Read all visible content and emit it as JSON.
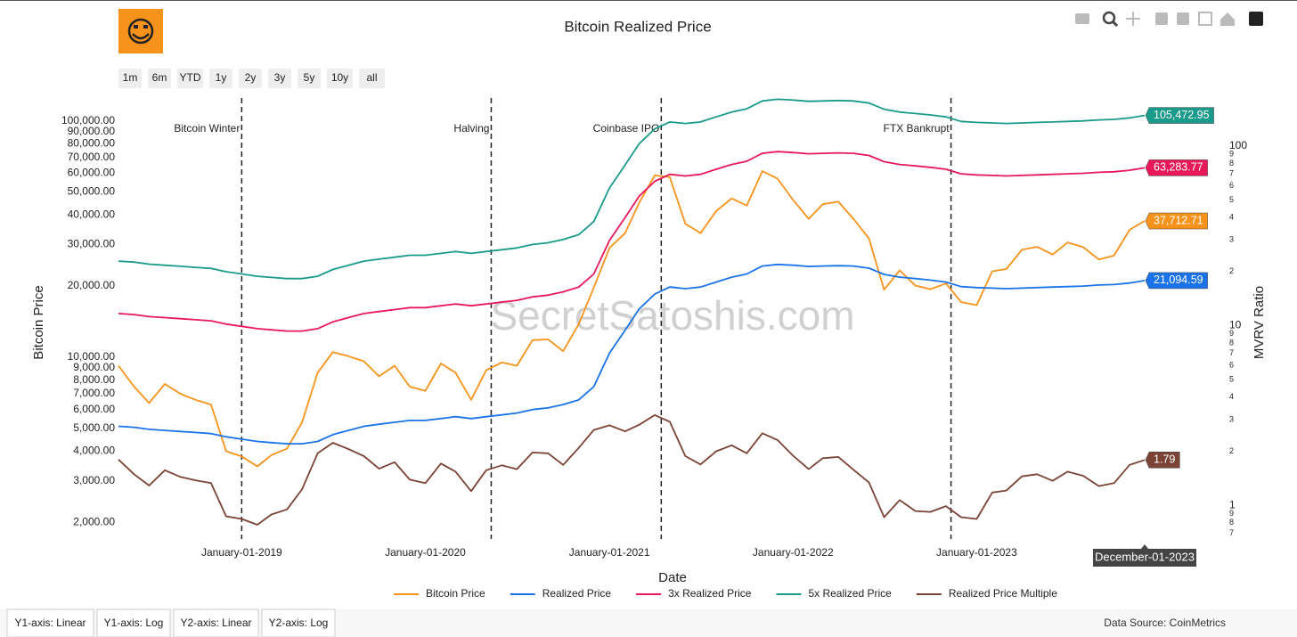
{
  "chart_data": {
    "type": "line",
    "title": "Bitcoin Realized Price",
    "x_label": "Date",
    "y_label": "Bitcoin Price",
    "y2_label": "MVRV Ratio",
    "watermark": "SecretSatoshis.com",
    "hover_label": "December-01-2023",
    "log_y": true,
    "log_y2": true,
    "legend": "bottom",
    "x": [
      "2018-05-01",
      "2018-06-01",
      "2018-07-01",
      "2018-08-01",
      "2018-09-01",
      "2018-10-01",
      "2018-11-01",
      "2018-12-01",
      "2019-01-01",
      "2019-02-01",
      "2019-03-01",
      "2019-04-01",
      "2019-05-01",
      "2019-06-01",
      "2019-07-01",
      "2019-08-01",
      "2019-09-01",
      "2019-10-01",
      "2019-11-01",
      "2019-12-01",
      "2020-01-01",
      "2020-02-01",
      "2020-03-01",
      "2020-04-01",
      "2020-05-01",
      "2020-06-01",
      "2020-07-01",
      "2020-08-01",
      "2020-09-01",
      "2020-10-01",
      "2020-11-01",
      "2020-12-01",
      "2021-01-01",
      "2021-02-01",
      "2021-03-01",
      "2021-04-01",
      "2021-05-01",
      "2021-06-01",
      "2021-07-01",
      "2021-08-01",
      "2021-09-01",
      "2021-10-01",
      "2021-11-01",
      "2021-12-01",
      "2022-01-01",
      "2022-02-01",
      "2022-03-01",
      "2022-04-01",
      "2022-05-01",
      "2022-06-01",
      "2022-07-01",
      "2022-08-01",
      "2022-09-01",
      "2022-10-01",
      "2022-11-01",
      "2022-12-01",
      "2023-01-01",
      "2023-02-01",
      "2023-03-01",
      "2023-04-01",
      "2023-05-01",
      "2023-06-01",
      "2023-07-01",
      "2023-08-01",
      "2023-09-01",
      "2023-10-01",
      "2023-11-01",
      "2023-12-01"
    ],
    "xlim": [
      "2018-05-01",
      "2023-12-01"
    ],
    "xticks": [
      {
        "value": "2019-01-01",
        "label": "January-01-2019"
      },
      {
        "value": "2020-01-01",
        "label": "January-01-2020"
      },
      {
        "value": "2021-01-01",
        "label": "January-01-2021"
      },
      {
        "value": "2022-01-01",
        "label": "January-01-2022"
      },
      {
        "value": "2023-01-01",
        "label": "January-01-2023"
      }
    ],
    "ylim": [
      1700,
      125000
    ],
    "yticks": [
      {
        "value": 2000,
        "label": "2,000.00"
      },
      {
        "value": 3000,
        "label": "3,000.00"
      },
      {
        "value": 4000,
        "label": "4,000.00"
      },
      {
        "value": 5000,
        "label": "5,000.00"
      },
      {
        "value": 6000,
        "label": "6,000.00"
      },
      {
        "value": 7000,
        "label": "7,000.00"
      },
      {
        "value": 8000,
        "label": "8,000.00"
      },
      {
        "value": 9000,
        "label": "9,000.00"
      },
      {
        "value": 10000,
        "label": "10,000.00"
      },
      {
        "value": 20000,
        "label": "20,000.00"
      },
      {
        "value": 30000,
        "label": "30,000.00"
      },
      {
        "value": 40000,
        "label": "40,000.00"
      },
      {
        "value": 50000,
        "label": "50,000.00"
      },
      {
        "value": 60000,
        "label": "60,000.00"
      },
      {
        "value": 70000,
        "label": "70,000.00"
      },
      {
        "value": 80000,
        "label": "80,000.00"
      },
      {
        "value": 90000,
        "label": "90,000.00"
      },
      {
        "value": 100000,
        "label": "100,000.00"
      }
    ],
    "y2lim": [
      0.65,
      185
    ],
    "y2ticks": [
      100,
      {
        "value": 90,
        "label": "9"
      },
      {
        "value": 80,
        "label": "8"
      },
      {
        "value": 70,
        "label": "7"
      },
      {
        "value": 60,
        "label": "6"
      },
      {
        "value": 50,
        "label": "5"
      },
      {
        "value": 40,
        "label": "4"
      },
      {
        "value": 30,
        "label": "3"
      },
      {
        "value": 20,
        "label": "2"
      },
      10,
      9,
      8,
      7,
      6,
      5,
      4,
      3,
      2,
      1,
      {
        "value": 0.9,
        "label": "9"
      },
      {
        "value": 0.8,
        "label": "8"
      },
      {
        "value": 0.7,
        "label": "7"
      }
    ],
    "series": [
      {
        "name": "Bitcoin Price",
        "color": "#f7931a",
        "end_label": "37,712.71",
        "values": [
          9200,
          7500,
          6400,
          7700,
          7000,
          6600,
          6300,
          4000,
          3800,
          3450,
          3850,
          4100,
          5300,
          8600,
          10500,
          10100,
          9600,
          8300,
          9200,
          7500,
          7200,
          9400,
          8600,
          6600,
          8800,
          9500,
          9200,
          11800,
          11900,
          10600,
          13800,
          19700,
          29000,
          33500,
          45000,
          58800,
          57800,
          36700,
          33500,
          41500,
          47000,
          43800,
          61300,
          57000,
          46300,
          38500,
          44400,
          45500,
          38500,
          31800,
          19300,
          23300,
          20100,
          19400,
          20500,
          17100,
          16600,
          23100,
          23600,
          28500,
          29300,
          27200,
          30600,
          29200,
          25900,
          26900,
          34600,
          37712.71
        ]
      },
      {
        "name": "Realized Price",
        "color": "#1a73e8",
        "end_label": "21,094.59",
        "values": [
          5100,
          5050,
          4950,
          4900,
          4850,
          4800,
          4750,
          4600,
          4500,
          4400,
          4350,
          4300,
          4300,
          4400,
          4700,
          4900,
          5100,
          5200,
          5300,
          5400,
          5400,
          5500,
          5600,
          5500,
          5600,
          5700,
          5800,
          6000,
          6100,
          6300,
          6600,
          7500,
          10400,
          13000,
          16000,
          18500,
          19800,
          19500,
          19800,
          20800,
          21800,
          22500,
          24300,
          24700,
          24500,
          24200,
          24300,
          24400,
          24300,
          23800,
          22400,
          21800,
          21500,
          21200,
          20800,
          19900,
          19700,
          19600,
          19500,
          19600,
          19700,
          19800,
          19900,
          20000,
          20200,
          20300,
          20600,
          21094.59
        ]
      },
      {
        "name": "3x Realized Price",
        "color": "#e8185a",
        "end_label": "63,283.77",
        "values": [
          15300,
          15150,
          14850,
          14700,
          14550,
          14400,
          14250,
          13800,
          13500,
          13200,
          13050,
          12900,
          12900,
          13200,
          14100,
          14700,
          15300,
          15600,
          15900,
          16200,
          16200,
          16500,
          16800,
          16500,
          16800,
          17100,
          17400,
          18000,
          18300,
          18900,
          19800,
          22500,
          31200,
          39000,
          48000,
          55500,
          59400,
          58500,
          59400,
          62400,
          65400,
          67500,
          72900,
          74100,
          73500,
          72600,
          72900,
          73200,
          72900,
          71400,
          67200,
          65400,
          64500,
          63600,
          62400,
          59700,
          59100,
          58800,
          58500,
          58800,
          59100,
          59400,
          59700,
          60000,
          60600,
          60900,
          61800,
          63283.77
        ]
      },
      {
        "name": "5x Realized Price",
        "color": "#1a9a8a",
        "end_label": "105,472.95",
        "values": [
          25500,
          25250,
          24750,
          24500,
          24250,
          24000,
          23750,
          23000,
          22500,
          22000,
          21750,
          21500,
          21500,
          22000,
          23500,
          24500,
          25500,
          26000,
          26500,
          27000,
          27000,
          27500,
          28000,
          27500,
          28000,
          28500,
          29000,
          30000,
          30500,
          31500,
          33000,
          37500,
          52000,
          65000,
          80000,
          92500,
          99000,
          97500,
          99000,
          104000,
          109000,
          112500,
          121500,
          123500,
          122500,
          121000,
          121500,
          122000,
          121500,
          119000,
          112000,
          109000,
          107500,
          106000,
          104000,
          99500,
          98500,
          98000,
          97500,
          98000,
          98500,
          99000,
          99500,
          100000,
          101000,
          101500,
          103000,
          105472.95
        ]
      },
      {
        "name": "Realized Price Multiple",
        "color": "#7b4336",
        "axis": "y2",
        "end_label": "1.79",
        "values": [
          1.8,
          1.49,
          1.29,
          1.57,
          1.44,
          1.38,
          1.33,
          0.87,
          0.84,
          0.78,
          0.89,
          0.95,
          1.23,
          1.95,
          2.23,
          2.06,
          1.88,
          1.6,
          1.74,
          1.39,
          1.33,
          1.71,
          1.54,
          1.2,
          1.57,
          1.67,
          1.59,
          1.97,
          1.95,
          1.68,
          2.09,
          2.63,
          2.79,
          2.58,
          2.81,
          3.18,
          2.92,
          1.88,
          1.69,
          2.0,
          2.16,
          1.95,
          2.52,
          2.31,
          1.89,
          1.59,
          1.83,
          1.86,
          1.58,
          1.34,
          0.86,
          1.07,
          0.93,
          0.92,
          0.99,
          0.86,
          0.84,
          1.18,
          1.21,
          1.45,
          1.49,
          1.37,
          1.54,
          1.46,
          1.28,
          1.33,
          1.68,
          1.79
        ]
      }
    ],
    "annotations": [
      {
        "x": "2019-01-01",
        "text": "Bitcoin Winter"
      },
      {
        "x": "2020-05-11",
        "text": "Halving"
      },
      {
        "x": "2021-04-14",
        "text": "Coinbase IPO"
      },
      {
        "x": "2022-11-11",
        "text": "FTX Bankrupt"
      }
    ]
  },
  "ui": {
    "range_buttons": [
      "1m",
      "6m",
      "YTD",
      "1y",
      "2y",
      "3y",
      "5y",
      "10y",
      "all"
    ],
    "tabs": [
      "Y1-axis: Linear",
      "Y1-axis: Log",
      "Y2-axis: Linear",
      "Y2-axis: Log"
    ],
    "source": "Data Source: CoinMetrics"
  }
}
